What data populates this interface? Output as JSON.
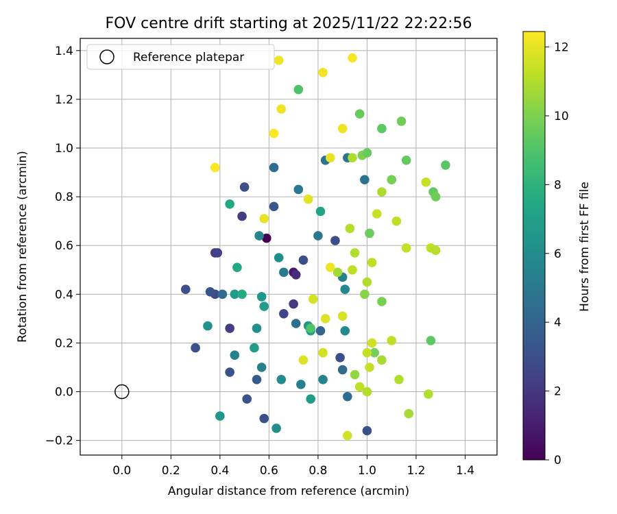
{
  "chart_data": {
    "type": "scatter",
    "title": "FOV centre drift starting at 2025/11/22 22:22:56",
    "xlabel": "Angular distance from reference (arcmin)",
    "ylabel": "Rotation from reference (arcmin)",
    "xlim": [
      -0.17,
      1.53
    ],
    "ylim": [
      -0.26,
      1.45
    ],
    "xticks": [
      0.0,
      0.2,
      0.4,
      0.6,
      0.8,
      1.0,
      1.2,
      1.4
    ],
    "xtick_labels": [
      "0.0",
      "0.2",
      "0.4",
      "0.6",
      "0.8",
      "1.0",
      "1.2",
      "1.4"
    ],
    "yticks": [
      -0.2,
      0.0,
      0.2,
      0.4,
      0.6,
      0.8,
      1.0,
      1.2,
      1.4
    ],
    "ytick_labels": [
      "−0.2",
      "0.0",
      "0.2",
      "0.4",
      "0.6",
      "0.8",
      "1.0",
      "1.2",
      "1.4"
    ],
    "grid": true,
    "legend": {
      "location": "top-left",
      "entries": [
        {
          "marker": "hollow-circle",
          "label": "Reference platepar"
        }
      ]
    },
    "reference_point": {
      "x": 0.0,
      "y": 0.0
    },
    "colorbar": {
      "label": "Hours from first FF file",
      "colormap": "viridis",
      "range": [
        0,
        12.45
      ],
      "ticks": [
        0,
        2,
        4,
        6,
        8,
        10,
        12
      ],
      "tick_labels": [
        "0",
        "2",
        "4",
        "6",
        "8",
        "10",
        "12"
      ]
    },
    "points": [
      {
        "x": 0.59,
        "y": 0.63,
        "c": 0.0
      },
      {
        "x": 0.7,
        "y": 0.49,
        "c": 0.8
      },
      {
        "x": 0.71,
        "y": 0.48,
        "c": 1.6
      },
      {
        "x": 0.7,
        "y": 0.36,
        "c": 2.1
      },
      {
        "x": 0.66,
        "y": 0.32,
        "c": 2.5
      },
      {
        "x": 0.38,
        "y": 0.57,
        "c": 2.2
      },
      {
        "x": 0.39,
        "y": 0.57,
        "c": 2.4
      },
      {
        "x": 0.49,
        "y": 0.72,
        "c": 2.2
      },
      {
        "x": 0.5,
        "y": 0.84,
        "c": 3.0
      },
      {
        "x": 0.44,
        "y": 0.26,
        "c": 2.3
      },
      {
        "x": 0.38,
        "y": 0.4,
        "c": 2.8
      },
      {
        "x": 0.36,
        "y": 0.41,
        "c": 3.2
      },
      {
        "x": 0.26,
        "y": 0.42,
        "c": 3.0
      },
      {
        "x": 0.3,
        "y": 0.18,
        "c": 3.0
      },
      {
        "x": 0.44,
        "y": 0.08,
        "c": 3.1
      },
      {
        "x": 0.51,
        "y": -0.03,
        "c": 3.2
      },
      {
        "x": 0.58,
        "y": -0.11,
        "c": 3.0
      },
      {
        "x": 0.55,
        "y": 0.05,
        "c": 3.5
      },
      {
        "x": 0.62,
        "y": 0.76,
        "c": 3.3
      },
      {
        "x": 0.74,
        "y": 0.54,
        "c": 3.0
      },
      {
        "x": 0.87,
        "y": 0.62,
        "c": 3.0
      },
      {
        "x": 0.89,
        "y": 0.14,
        "c": 3.0
      },
      {
        "x": 1.0,
        "y": -0.16,
        "c": 3.1
      },
      {
        "x": 0.41,
        "y": 0.4,
        "c": 4.3
      },
      {
        "x": 0.62,
        "y": 0.92,
        "c": 4.5
      },
      {
        "x": 0.71,
        "y": 0.28,
        "c": 4.5
      },
      {
        "x": 0.81,
        "y": 0.25,
        "c": 4.0
      },
      {
        "x": 0.83,
        "y": 0.95,
        "c": 4.8
      },
      {
        "x": 0.9,
        "y": 0.09,
        "c": 4.3
      },
      {
        "x": 0.92,
        "y": -0.02,
        "c": 4.5
      },
      {
        "x": 0.92,
        "y": 0.96,
        "c": 4.9
      },
      {
        "x": 0.99,
        "y": 0.87,
        "c": 4.8
      },
      {
        "x": 0.72,
        "y": 0.83,
        "c": 5.0
      },
      {
        "x": 0.8,
        "y": 0.64,
        "c": 5.0
      },
      {
        "x": 0.66,
        "y": 0.49,
        "c": 5.2
      },
      {
        "x": 0.56,
        "y": 0.64,
        "c": 5.6
      },
      {
        "x": 0.46,
        "y": 0.15,
        "c": 5.5
      },
      {
        "x": 0.57,
        "y": 0.1,
        "c": 5.4
      },
      {
        "x": 0.73,
        "y": 0.03,
        "c": 5.4
      },
      {
        "x": 0.82,
        "y": 0.05,
        "c": 5.5
      },
      {
        "x": 0.9,
        "y": 0.47,
        "c": 5.5
      },
      {
        "x": 0.91,
        "y": 0.42,
        "c": 5.7
      },
      {
        "x": 0.91,
        "y": 0.25,
        "c": 5.9
      },
      {
        "x": 0.63,
        "y": -0.15,
        "c": 6.0
      },
      {
        "x": 0.65,
        "y": 0.05,
        "c": 6.0
      },
      {
        "x": 0.64,
        "y": 0.55,
        "c": 6.1
      },
      {
        "x": 0.35,
        "y": 0.27,
        "c": 6.3
      },
      {
        "x": 0.55,
        "y": 0.26,
        "c": 6.2
      },
      {
        "x": 0.57,
        "y": 0.39,
        "c": 6.5
      },
      {
        "x": 0.58,
        "y": 0.35,
        "c": 6.8
      },
      {
        "x": 0.46,
        "y": 0.4,
        "c": 6.7
      },
      {
        "x": 0.4,
        "y": -0.1,
        "c": 6.5
      },
      {
        "x": 0.54,
        "y": 0.18,
        "c": 6.8
      },
      {
        "x": 0.76,
        "y": 0.27,
        "c": 6.6
      },
      {
        "x": 0.77,
        "y": 0.25,
        "c": 6.9
      },
      {
        "x": 0.77,
        "y": -0.03,
        "c": 6.8
      },
      {
        "x": 0.81,
        "y": 0.74,
        "c": 7.3
      },
      {
        "x": 0.44,
        "y": 0.77,
        "c": 7.4
      },
      {
        "x": 0.47,
        "y": 0.51,
        "c": 7.5
      },
      {
        "x": 0.49,
        "y": 0.4,
        "c": 7.6
      },
      {
        "x": 0.72,
        "y": 1.24,
        "c": 8.9
      },
      {
        "x": 0.77,
        "y": 0.26,
        "c": 9.0
      },
      {
        "x": 0.97,
        "y": 1.14,
        "c": 9.5
      },
      {
        "x": 0.98,
        "y": 0.97,
        "c": 10.0
      },
      {
        "x": 1.0,
        "y": 0.98,
        "c": 9.5
      },
      {
        "x": 1.06,
        "y": 1.08,
        "c": 9.3
      },
      {
        "x": 1.14,
        "y": 1.11,
        "c": 9.7
      },
      {
        "x": 1.16,
        "y": 0.95,
        "c": 9.4
      },
      {
        "x": 1.1,
        "y": 0.87,
        "c": 9.8
      },
      {
        "x": 1.27,
        "y": 0.82,
        "c": 9.4
      },
      {
        "x": 1.28,
        "y": 0.8,
        "c": 9.7
      },
      {
        "x": 1.32,
        "y": 0.93,
        "c": 9.2
      },
      {
        "x": 1.26,
        "y": 0.21,
        "c": 9.3
      },
      {
        "x": 1.01,
        "y": 0.65,
        "c": 9.6
      },
      {
        "x": 0.99,
        "y": 0.4,
        "c": 10.2
      },
      {
        "x": 1.06,
        "y": 0.37,
        "c": 9.9
      },
      {
        "x": 1.03,
        "y": 0.16,
        "c": 9.8
      },
      {
        "x": 0.95,
        "y": 0.07,
        "c": 10.4
      },
      {
        "x": 0.88,
        "y": 0.49,
        "c": 10.7
      },
      {
        "x": 0.94,
        "y": 0.96,
        "c": 10.9
      },
      {
        "x": 0.93,
        "y": 0.67,
        "c": 11.0
      },
      {
        "x": 0.95,
        "y": 0.57,
        "c": 11.0
      },
      {
        "x": 0.94,
        "y": 0.5,
        "c": 11.2
      },
      {
        "x": 1.0,
        "y": 0.45,
        "c": 11.0
      },
      {
        "x": 1.02,
        "y": 0.53,
        "c": 11.2
      },
      {
        "x": 1.04,
        "y": 0.73,
        "c": 11.4
      },
      {
        "x": 1.06,
        "y": 0.82,
        "c": 10.9
      },
      {
        "x": 1.12,
        "y": 0.7,
        "c": 11.2
      },
      {
        "x": 1.16,
        "y": 0.59,
        "c": 11.3
      },
      {
        "x": 1.24,
        "y": 0.86,
        "c": 11.4
      },
      {
        "x": 1.26,
        "y": 0.59,
        "c": 11.2
      },
      {
        "x": 1.28,
        "y": 0.58,
        "c": 11.1
      },
      {
        "x": 1.1,
        "y": 0.21,
        "c": 11.2
      },
      {
        "x": 1.06,
        "y": 0.13,
        "c": 10.8
      },
      {
        "x": 1.13,
        "y": 0.05,
        "c": 11.0
      },
      {
        "x": 1.25,
        "y": -0.01,
        "c": 11.0
      },
      {
        "x": 1.17,
        "y": -0.09,
        "c": 10.8
      },
      {
        "x": 1.0,
        "y": 0.16,
        "c": 11.3
      },
      {
        "x": 1.02,
        "y": 0.2,
        "c": 11.6
      },
      {
        "x": 1.01,
        "y": 0.1,
        "c": 11.4
      },
      {
        "x": 0.97,
        "y": 0.02,
        "c": 11.2
      },
      {
        "x": 1.0,
        "y": 0.0,
        "c": 11.0
      },
      {
        "x": 0.92,
        "y": -0.18,
        "c": 11.6
      },
      {
        "x": 0.9,
        "y": 0.31,
        "c": 11.7
      },
      {
        "x": 0.83,
        "y": 0.3,
        "c": 11.8
      },
      {
        "x": 0.82,
        "y": 0.16,
        "c": 11.6
      },
      {
        "x": 0.74,
        "y": 0.13,
        "c": 11.8
      },
      {
        "x": 0.78,
        "y": 0.38,
        "c": 11.7
      },
      {
        "x": 0.85,
        "y": 0.51,
        "c": 12.2
      },
      {
        "x": 0.85,
        "y": 0.96,
        "c": 12.0
      },
      {
        "x": 0.76,
        "y": 0.79,
        "c": 11.9
      },
      {
        "x": 0.58,
        "y": 0.71,
        "c": 12.0
      },
      {
        "x": 0.9,
        "y": 1.08,
        "c": 12.1
      },
      {
        "x": 0.82,
        "y": 1.31,
        "c": 12.2
      },
      {
        "x": 0.94,
        "y": 1.37,
        "c": 12.3
      },
      {
        "x": 0.64,
        "y": 1.36,
        "c": 12.2
      },
      {
        "x": 0.65,
        "y": 1.16,
        "c": 12.2
      },
      {
        "x": 0.62,
        "y": 1.06,
        "c": 12.4
      },
      {
        "x": 0.38,
        "y": 0.92,
        "c": 12.4
      }
    ]
  }
}
